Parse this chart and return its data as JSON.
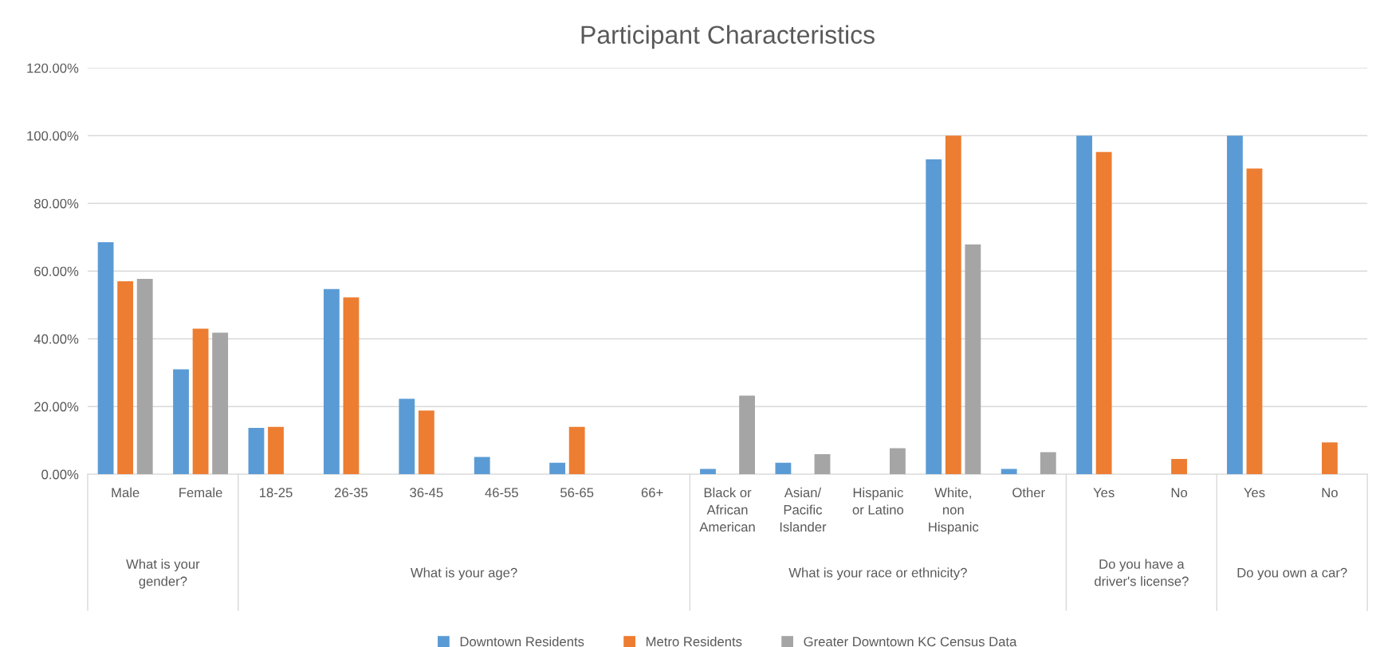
{
  "chart_data": {
    "type": "bar",
    "title": "Participant Characteristics",
    "categories": [
      "Male",
      "Female",
      "18-25",
      "26-35",
      "36-45",
      "46-55",
      "56-65",
      "66+",
      "Black or\nAfrican\nAmerican",
      "Asian/\nPacific\nIslander",
      "Hispanic\nor Latino",
      "White,\nnon\nHispanic",
      "Other",
      "Yes",
      "No",
      "Yes",
      "No"
    ],
    "annotations": [
      "What is your\ngender?",
      "What is your age?",
      "What is your race or ethnicity?",
      "Do you have a\ndriver's license?",
      "Do you own a car?"
    ],
    "series": [
      {
        "name": "Downtown Residents",
        "color": "#5b9bd5",
        "values": [
          68.5,
          31,
          13.7,
          54.7,
          22.3,
          5.1,
          3.4,
          null,
          1.6,
          3.4,
          null,
          93,
          1.6,
          100,
          null,
          100,
          null
        ]
      },
      {
        "name": "Metro Residents",
        "color": "#ed7d31",
        "values": [
          57,
          43,
          14,
          52.2,
          18.8,
          null,
          14,
          null,
          null,
          null,
          null,
          100,
          null,
          95.2,
          4.5,
          90.3,
          9.4
        ]
      },
      {
        "name": "Greater Downtown KC Census Data",
        "color": "#a5a5a5",
        "values": [
          57.7,
          41.8,
          null,
          null,
          null,
          null,
          null,
          null,
          23.2,
          5.9,
          7.7,
          67.9,
          6.5,
          null,
          null,
          null,
          null
        ]
      }
    ],
    "ylim": [
      0,
      120
    ],
    "yticks": [
      {
        "value": 0,
        "label": "0.00%"
      },
      {
        "value": 20,
        "label": "20.00%"
      },
      {
        "value": 40,
        "label": "40.00%"
      },
      {
        "value": 60,
        "label": "60.00%"
      },
      {
        "value": 80,
        "label": "80.00%"
      },
      {
        "value": 100,
        "label": "100.00%"
      },
      {
        "value": 120,
        "label": "120.00%"
      }
    ],
    "grid": "y",
    "legend": "bottom"
  }
}
